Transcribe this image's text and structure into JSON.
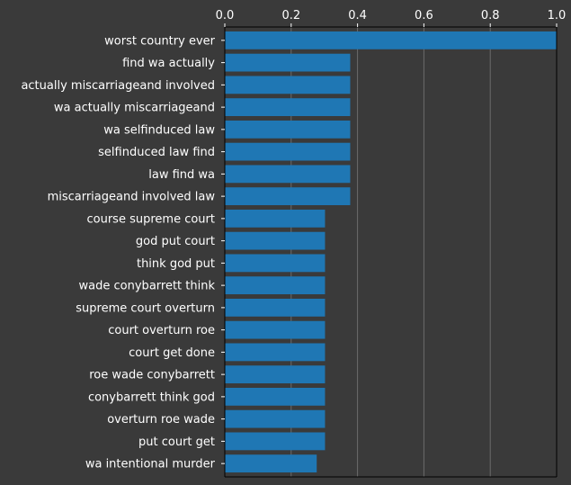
{
  "chart_data": {
    "type": "bar",
    "orientation": "horizontal",
    "categories": [
      "worst country ever",
      "find wa actually",
      "actually miscarriageand involved",
      "wa actually miscarriageand",
      "wa selfinduced law",
      "selfinduced law find",
      "law find wa",
      "miscarriageand involved law",
      "course supreme court",
      "god put court",
      "think god put",
      "wade conybarrett think",
      "supreme court overturn",
      "court overturn roe",
      "court get done",
      "roe wade conybarrett",
      "conybarrett think god",
      "overturn roe wade",
      "put court get",
      "wa intentional murder"
    ],
    "values": [
      1.0,
      0.378,
      0.378,
      0.378,
      0.378,
      0.378,
      0.378,
      0.378,
      0.302,
      0.302,
      0.302,
      0.302,
      0.302,
      0.302,
      0.302,
      0.302,
      0.302,
      0.302,
      0.302,
      0.277
    ],
    "xlim": [
      0,
      1.0
    ],
    "xticks": [
      "0.0",
      "0.2",
      "0.4",
      "0.6",
      "0.8",
      "1.0"
    ],
    "xaxis_position": "top",
    "grid": "vertical",
    "bar_color": "#1f77b4",
    "background_color": "#3a3a3a",
    "grid_color": "#6b6b6b",
    "text_color": "#ffffff"
  }
}
